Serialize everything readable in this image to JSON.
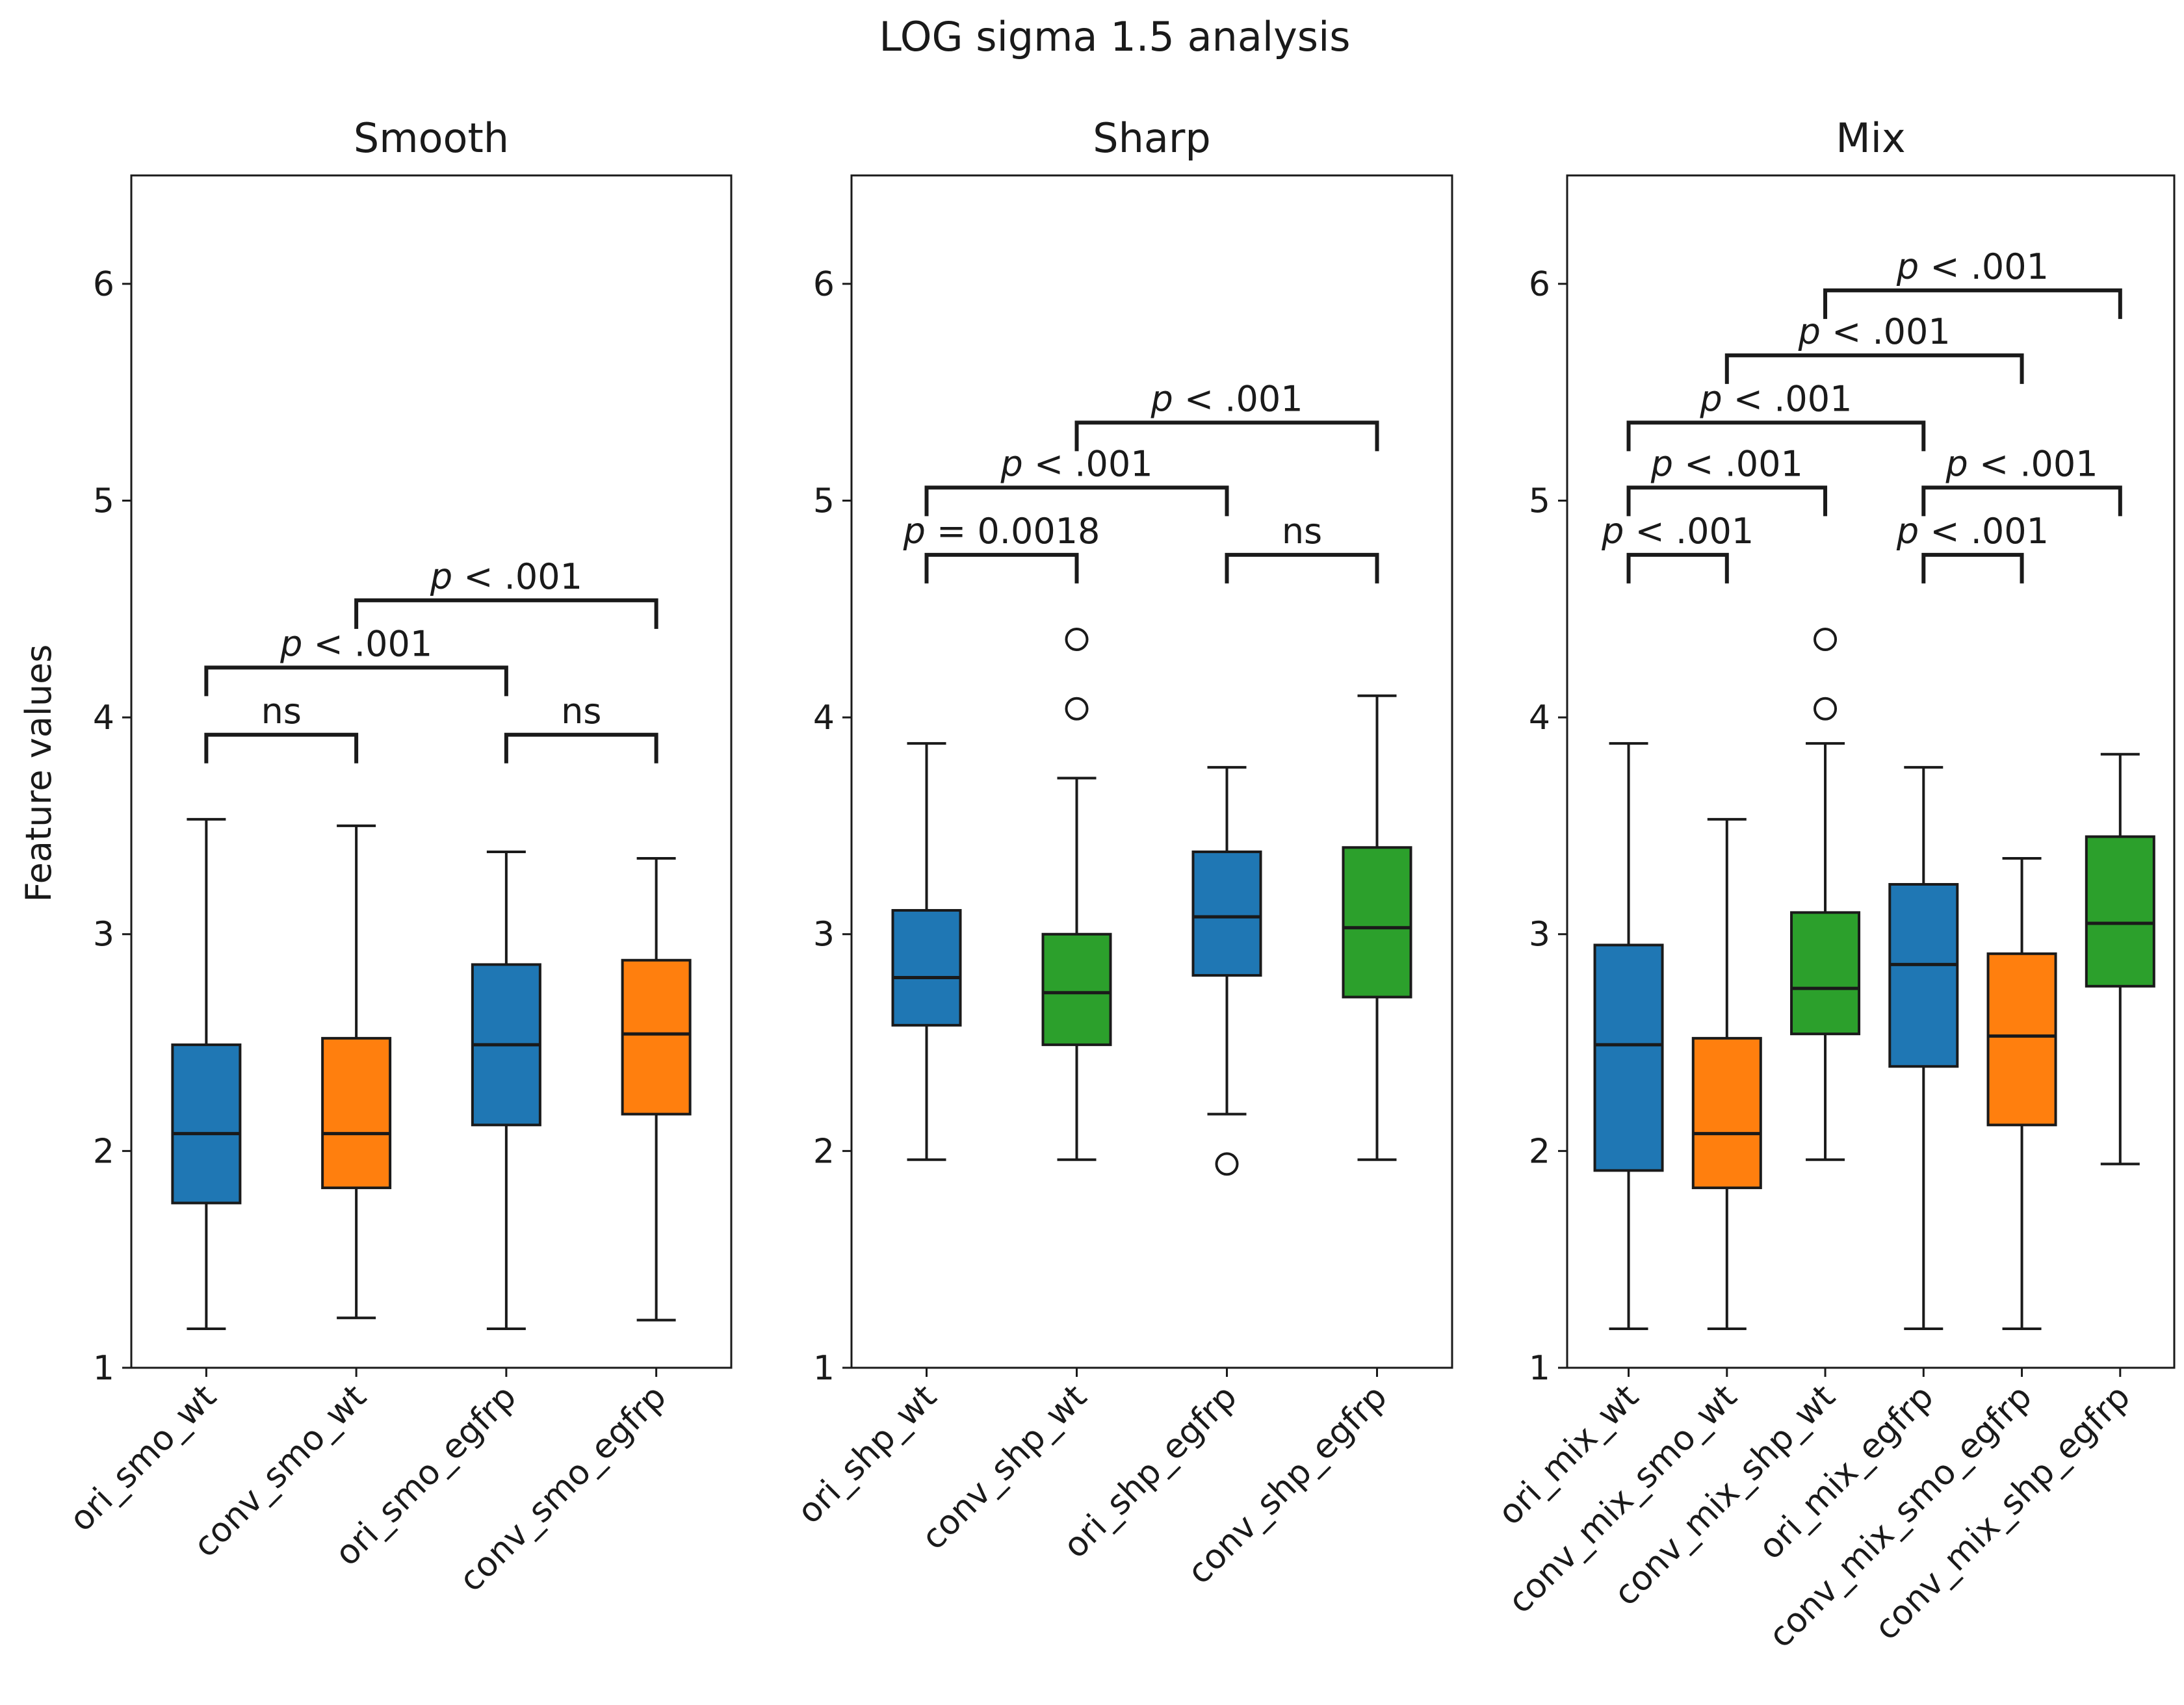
{
  "chart_data": {
    "type": "box",
    "title": "LOG sigma 1.5 analysis",
    "ylabel": "Feature values",
    "ylim": [
      1,
      6.5
    ],
    "yticks": [
      1,
      2,
      3,
      4,
      5,
      6
    ],
    "colors": {
      "blue": "#1f77b4",
      "orange": "#ff7f0e",
      "green": "#2ca02c"
    },
    "panels": [
      {
        "name": "Smooth",
        "categories": [
          "ori_smo_wt",
          "conv_smo_wt",
          "ori_smo_egfrp",
          "conv_smo_egfrp"
        ],
        "boxes": [
          {
            "color": "blue",
            "whislo": 1.18,
            "q1": 1.76,
            "med": 2.08,
            "q3": 2.49,
            "whishi": 3.53,
            "fliers": []
          },
          {
            "color": "orange",
            "whislo": 1.23,
            "q1": 1.83,
            "med": 2.08,
            "q3": 2.52,
            "whishi": 3.5,
            "fliers": []
          },
          {
            "color": "blue",
            "whislo": 1.18,
            "q1": 2.12,
            "med": 2.49,
            "q3": 2.86,
            "whishi": 3.38,
            "fliers": []
          },
          {
            "color": "orange",
            "whislo": 1.22,
            "q1": 2.17,
            "med": 2.54,
            "q3": 2.88,
            "whishi": 3.35,
            "fliers": []
          }
        ],
        "annotations": [
          {
            "from": 0,
            "to": 1,
            "y": 3.92,
            "text": "ns"
          },
          {
            "from": 2,
            "to": 3,
            "y": 3.92,
            "text": "ns"
          },
          {
            "from": 0,
            "to": 2,
            "y": 4.23,
            "text": "p < .001"
          },
          {
            "from": 1,
            "to": 3,
            "y": 4.54,
            "text": "p < .001"
          }
        ]
      },
      {
        "name": "Sharp",
        "categories": [
          "ori_shp_wt",
          "conv_shp_wt",
          "ori_shp_egfrp",
          "conv_shp_egfrp"
        ],
        "boxes": [
          {
            "color": "blue",
            "whislo": 1.96,
            "q1": 2.58,
            "med": 2.8,
            "q3": 3.11,
            "whishi": 3.88,
            "fliers": []
          },
          {
            "color": "green",
            "whislo": 1.96,
            "q1": 2.49,
            "med": 2.73,
            "q3": 3.0,
            "whishi": 3.72,
            "fliers": [
              4.04,
              4.36
            ]
          },
          {
            "color": "blue",
            "whislo": 2.17,
            "q1": 2.81,
            "med": 3.08,
            "q3": 3.38,
            "whishi": 3.77,
            "fliers": [
              1.94
            ]
          },
          {
            "color": "green",
            "whislo": 1.96,
            "q1": 2.71,
            "med": 3.03,
            "q3": 3.4,
            "whishi": 4.1,
            "fliers": []
          }
        ],
        "annotations": [
          {
            "from": 0,
            "to": 1,
            "y": 4.75,
            "text": "p = 0.0018"
          },
          {
            "from": 2,
            "to": 3,
            "y": 4.75,
            "text": "ns"
          },
          {
            "from": 0,
            "to": 2,
            "y": 5.06,
            "text": "p < .001"
          },
          {
            "from": 1,
            "to": 3,
            "y": 5.36,
            "text": "p < .001"
          }
        ]
      },
      {
        "name": "Mix",
        "categories": [
          "ori_mix_wt",
          "conv_mix_smo_wt",
          "conv_mix_shp_wt",
          "ori_mix_egfrp",
          "conv_mix_smo_egfrp",
          "conv_mix_shp_egfrp"
        ],
        "boxes": [
          {
            "color": "blue",
            "whislo": 1.18,
            "q1": 1.91,
            "med": 2.49,
            "q3": 2.95,
            "whishi": 3.88,
            "fliers": []
          },
          {
            "color": "orange",
            "whislo": 1.18,
            "q1": 1.83,
            "med": 2.08,
            "q3": 2.52,
            "whishi": 3.53,
            "fliers": []
          },
          {
            "color": "green",
            "whislo": 1.96,
            "q1": 2.54,
            "med": 2.75,
            "q3": 3.1,
            "whishi": 3.88,
            "fliers": [
              4.04,
              4.36
            ]
          },
          {
            "color": "blue",
            "whislo": 1.18,
            "q1": 2.39,
            "med": 2.86,
            "q3": 3.23,
            "whishi": 3.77,
            "fliers": []
          },
          {
            "color": "orange",
            "whislo": 1.18,
            "q1": 2.12,
            "med": 2.53,
            "q3": 2.91,
            "whishi": 3.35,
            "fliers": []
          },
          {
            "color": "green",
            "whislo": 1.94,
            "q1": 2.76,
            "med": 3.05,
            "q3": 3.45,
            "whishi": 3.83,
            "fliers": []
          }
        ],
        "annotations": [
          {
            "from": 0,
            "to": 1,
            "y": 4.75,
            "text": "p < .001"
          },
          {
            "from": 3,
            "to": 4,
            "y": 4.75,
            "text": "p < .001"
          },
          {
            "from": 0,
            "to": 2,
            "y": 5.06,
            "text": "p < .001"
          },
          {
            "from": 3,
            "to": 5,
            "y": 5.06,
            "text": "p < .001"
          },
          {
            "from": 0,
            "to": 3,
            "y": 5.36,
            "text": "p < .001"
          },
          {
            "from": 1,
            "to": 4,
            "y": 5.67,
            "text": "p < .001"
          },
          {
            "from": 2,
            "to": 5,
            "y": 5.97,
            "text": "p < .001"
          }
        ]
      }
    ]
  }
}
